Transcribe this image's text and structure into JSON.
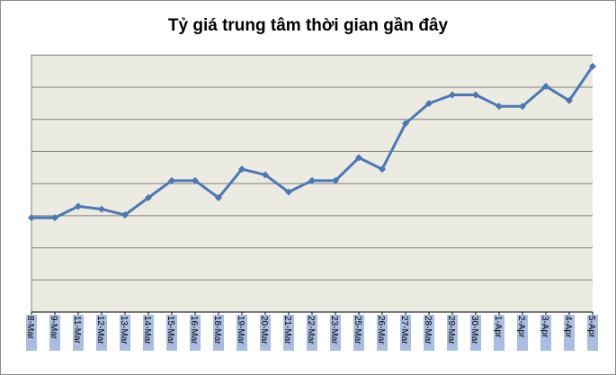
{
  "chart_data": {
    "type": "line",
    "title": "Tỷ giá trung tâm thời gian gần đây",
    "xlabel": "",
    "ylabel": "",
    "categories": [
      "8-Mar",
      "9-Mar",
      "11-Mar",
      "12-Mar",
      "13-Mar",
      "14-Mar",
      "15-Mar",
      "16-Mar",
      "18-Mar",
      "19-Mar",
      "20-Mar",
      "21-Mar",
      "22-Mar",
      "23-Mar",
      "25-Mar",
      "26-Mar",
      "27-Mar",
      "28-Mar",
      "29-Mar",
      "30-Mar",
      "1-Apr",
      "2-Apr",
      "3-Apr",
      "4-Apr",
      "5-Apr"
    ],
    "series": [
      {
        "values": [
          3.3,
          3.3,
          3.7,
          3.6,
          3.4,
          4.0,
          4.6,
          4.6,
          4.0,
          5.0,
          4.8,
          4.2,
          4.6,
          4.6,
          5.4,
          5.0,
          6.6,
          7.3,
          7.6,
          7.6,
          7.2,
          7.2,
          7.9,
          7.4,
          8.6
        ]
      }
    ],
    "ylim": [
      0,
      9
    ],
    "y_gridlines": 8,
    "grid": true,
    "legend": "none",
    "colors": {
      "plot_background": "#ecebe1",
      "line": "#4a78b5",
      "gridline": "#7f7f7f",
      "tick_label_background": "#a9bde2"
    }
  }
}
